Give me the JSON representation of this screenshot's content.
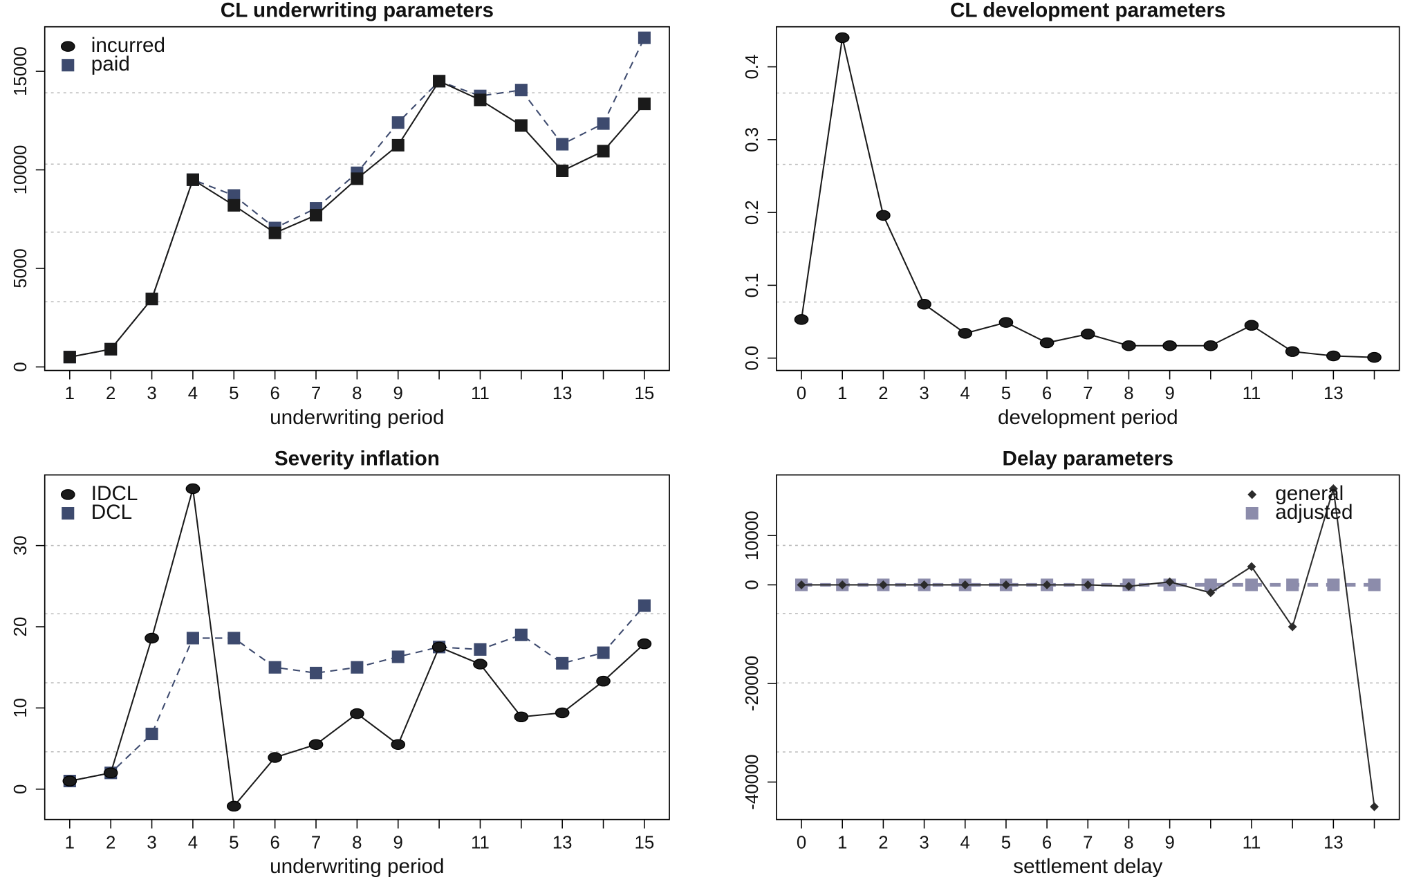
{
  "chart_data": [
    {
      "type": "line",
      "title": "CL underwriting parameters",
      "xlabel": "underwriting period",
      "categories": [
        "1",
        "2",
        "3",
        "4",
        "5",
        "6",
        "7",
        "8",
        "9",
        null,
        "11",
        null,
        "13",
        null,
        "15"
      ],
      "series": [
        {
          "name": "incurred",
          "color": "#1a1a1a",
          "marker": "square",
          "legend_marker": "circle",
          "linestyle": "solid",
          "values": [
            500,
            900,
            3450,
            9500,
            8200,
            6800,
            7700,
            9550,
            11250,
            14500,
            13550,
            12250,
            9950,
            10950,
            13350
          ]
        },
        {
          "name": "paid",
          "color": "#3d4a6e",
          "marker": "square",
          "legend_marker": "square",
          "linestyle": "dashed",
          "values": [
            500,
            900,
            3450,
            9500,
            8700,
            7050,
            8050,
            9850,
            12400,
            14500,
            13750,
            14050,
            11300,
            12350,
            16700
          ]
        }
      ],
      "ylim": [
        -180,
        17260
      ],
      "yticks": [
        0,
        5000,
        10000,
        15000
      ],
      "grid_lines": [
        3310,
        6840,
        10290,
        13910
      ],
      "legend": "topleft"
    },
    {
      "type": "line",
      "title": "CL development parameters",
      "xlabel": "development period",
      "categories": [
        "0",
        "1",
        "2",
        "3",
        "4",
        "5",
        "6",
        "7",
        "8",
        "9",
        null,
        "11",
        null,
        "13",
        null
      ],
      "series": [
        {
          "color": "#1a1a1a",
          "marker": "circle",
          "linestyle": "solid",
          "values": [
            0.053,
            0.44,
            0.196,
            0.074,
            0.034,
            0.049,
            0.021,
            0.033,
            0.017,
            0.017,
            0.017,
            0.045,
            0.009,
            0.003,
            0.001
          ]
        }
      ],
      "ylim": [
        -0.017,
        0.455
      ],
      "yticks": [
        {
          "value": 0,
          "label": "0.0"
        },
        0.1,
        0.2,
        0.3,
        0.4
      ],
      "grid_lines": [
        0.077,
        0.173,
        0.266,
        0.364
      ]
    },
    {
      "type": "line",
      "title": "Severity inflation",
      "xlabel": "underwriting period",
      "categories": [
        "1",
        "2",
        "3",
        "4",
        "5",
        "6",
        "7",
        "8",
        "9",
        null,
        "11",
        null,
        "13",
        null,
        "15"
      ],
      "series": [
        {
          "name": "IDCL",
          "color": "#1a1a1a",
          "marker": "circle",
          "legend_marker": "circle",
          "linestyle": "solid",
          "values": [
            1.0,
            2.0,
            18.6,
            37,
            -2.1,
            3.9,
            5.5,
            9.3,
            5.5,
            17.5,
            15.4,
            8.9,
            9.4,
            13.3,
            17.9
          ]
        },
        {
          "name": "DCL",
          "color": "#3d4a6e",
          "marker": "square",
          "legend_marker": "square",
          "linestyle": "dashed",
          "values": [
            1.0,
            2.0,
            6.8,
            18.6,
            18.6,
            15.0,
            14.3,
            15.0,
            16.3,
            17.5,
            17.2,
            19.0,
            15.5,
            16.8,
            22.6
          ]
        }
      ],
      "ylim": [
        -3.74,
        38.7
      ],
      "yticks": [
        0,
        10,
        20,
        30
      ],
      "grid_lines": [
        4.6,
        13.1,
        21.6,
        30.0
      ],
      "legend": "topleft"
    },
    {
      "type": "line",
      "title": "Delay parameters",
      "xlabel": "settlement delay",
      "categories": [
        "0",
        "1",
        "2",
        "3",
        "4",
        "5",
        "6",
        "7",
        "8",
        "9",
        null,
        "11",
        null,
        "13",
        null
      ],
      "series": [
        {
          "name": "general",
          "color": "#2b2b2b",
          "marker": "diamond",
          "legend_marker": "diamond",
          "linestyle": "solid",
          "values": [
            0,
            0,
            0,
            0,
            0,
            0,
            0,
            0,
            -300,
            600,
            -1600,
            3700,
            -8500,
            19500,
            -45000
          ]
        },
        {
          "name": "adjusted",
          "color": "#8c8cab",
          "marker": "square",
          "legend_marker": "square",
          "linestyle": "dashed",
          "values": [
            0,
            0,
            0,
            0,
            0,
            0,
            0,
            0,
            0,
            0,
            0,
            0,
            0,
            0,
            0
          ]
        }
      ],
      "ylim": [
        -47600,
        22300
      ],
      "yticks": [
        -40000,
        -20000,
        0,
        10000
      ],
      "grid_lines": [
        -33900,
        -19900,
        -5800,
        8000
      ],
      "legend": "topright"
    }
  ]
}
